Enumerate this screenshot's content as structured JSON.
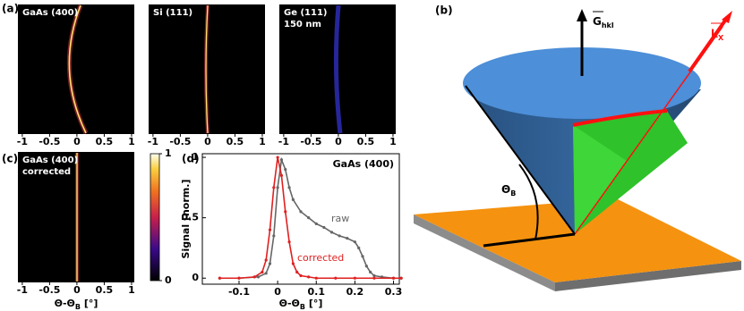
{
  "panel_a": {
    "label": "(a)",
    "images": [
      {
        "title": [
          "GaAs (400)"
        ]
      },
      {
        "title": [
          "Si (111)"
        ]
      },
      {
        "title": [
          "Ge (111)",
          "150 nm"
        ]
      }
    ],
    "xlim": [
      -1.08,
      1.05
    ],
    "xticks": [
      -1,
      -0.5,
      0,
      0.5,
      1
    ]
  },
  "panel_c": {
    "label": "(c)",
    "title": [
      "GaAs (400)",
      "corrected"
    ],
    "xlim": [
      -1.08,
      1.05
    ],
    "xticks": [
      -1,
      -0.5,
      0,
      0.5,
      1
    ],
    "xlabel": {
      "main": "Θ-Θ",
      "sub": "B",
      "unit": " [°]"
    },
    "colorbar": {
      "lim": [
        0,
        1
      ],
      "ticks": [
        0,
        1
      ]
    }
  },
  "panel_b": {
    "label": "(b)",
    "g_label": {
      "main": "G",
      "sub": "hkl"
    },
    "k_label": {
      "main": "k",
      "sub": "X"
    },
    "theta_label": {
      "main": "Θ",
      "sub": "B"
    }
  },
  "chart_data": {
    "type": "line",
    "label": "(d)",
    "ylabel": "Signal [norm.]",
    "xlabel": {
      "main": "Θ-Θ",
      "sub": "B",
      "unit": " [°]"
    },
    "annotations": [
      "GaAs (400)",
      "raw",
      "corrected"
    ],
    "xlim": [
      -0.195,
      0.315
    ],
    "xticks": [
      -0.1,
      0,
      0.1,
      0.2,
      0.3
    ],
    "ylim": [
      -0.05,
      1.03
    ],
    "yticks": [
      0,
      0.5,
      1
    ],
    "series": [
      {
        "name": "raw",
        "color": "#666666",
        "x": [
          -0.15,
          -0.1,
          -0.05,
          -0.03,
          -0.02,
          -0.01,
          0,
          0.01,
          0.02,
          0.03,
          0.04,
          0.06,
          0.08,
          0.1,
          0.12,
          0.14,
          0.16,
          0.18,
          0.2,
          0.21,
          0.22,
          0.23,
          0.24,
          0.25,
          0.27,
          0.3,
          0.32
        ],
        "values": [
          0,
          0,
          0.01,
          0.04,
          0.12,
          0.35,
          0.75,
          0.98,
          0.9,
          0.75,
          0.65,
          0.55,
          0.5,
          0.45,
          0.42,
          0.38,
          0.35,
          0.33,
          0.3,
          0.25,
          0.18,
          0.1,
          0.05,
          0.02,
          0.01,
          0,
          0
        ]
      },
      {
        "name": "corrected",
        "color": "#e02020",
        "x": [
          -0.15,
          -0.1,
          -0.06,
          -0.04,
          -0.03,
          -0.02,
          -0.01,
          0,
          0.01,
          0.02,
          0.03,
          0.04,
          0.05,
          0.06,
          0.08,
          0.1,
          0.15,
          0.2,
          0.25,
          0.3,
          0.32
        ],
        "values": [
          0,
          0,
          0.01,
          0.05,
          0.15,
          0.4,
          0.75,
          1.0,
          0.85,
          0.55,
          0.3,
          0.12,
          0.05,
          0.02,
          0.01,
          0,
          0,
          0,
          0,
          0,
          0
        ]
      }
    ]
  }
}
